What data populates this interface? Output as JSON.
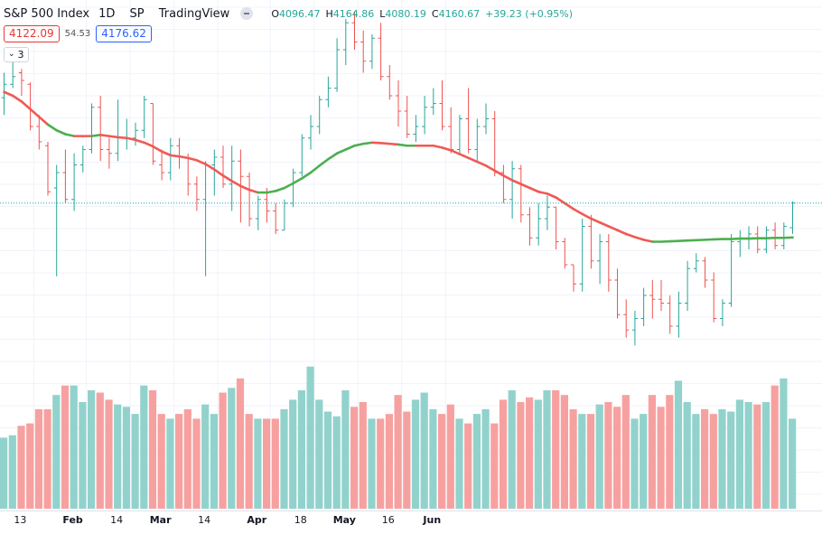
{
  "header": {
    "symbol": "S&P 500 Index",
    "interval": "1D",
    "exchange": "SP",
    "source": "TradingView",
    "open_label": "O",
    "open": "4096.47",
    "high_label": "H",
    "high": "4164.86",
    "low_label": "L",
    "low": "4080.19",
    "close_label": "C",
    "close": "4160.67",
    "change": "+39.23 (+0.95%)"
  },
  "indicator": {
    "value_a": "4122.09",
    "value_mid": "54.53",
    "value_b": "4176.62",
    "collapse_count": "3"
  },
  "colors": {
    "up": "#26a69a",
    "down": "#ef5350",
    "ma_down": "#f05a55",
    "ma_up": "#4caf50",
    "vol_up": "#92d2cc",
    "vol_down": "#f6a1a0"
  },
  "chart_data": {
    "type": "bar",
    "subtype": "ohlc",
    "date_labels": [
      "13",
      "Feb",
      "14",
      "Mar",
      "14",
      "Apr",
      "18",
      "May",
      "16",
      "Jun"
    ],
    "date_label_bars": [
      0,
      6,
      11,
      16,
      21,
      27,
      32,
      37,
      42,
      47
    ],
    "bold_labels": [
      "Feb",
      "Mar",
      "Apr",
      "May",
      "Jun"
    ],
    "last_close": 4160.67,
    "ohlc": [
      [
        4435,
        4500,
        4390,
        4470
      ],
      [
        4470,
        4530,
        4460,
        4490
      ],
      [
        4500,
        4510,
        4440,
        4480
      ],
      [
        4470,
        4475,
        4350,
        4360
      ],
      [
        4360,
        4390,
        4300,
        4320
      ],
      [
        4310,
        4320,
        4180,
        4190
      ],
      [
        4200,
        4260,
        3970,
        4240
      ],
      [
        4240,
        4300,
        4160,
        4170
      ],
      [
        4170,
        4290,
        4140,
        4260
      ],
      [
        4260,
        4310,
        4240,
        4300
      ],
      [
        4300,
        4420,
        4290,
        4410
      ],
      [
        4410,
        4440,
        4270,
        4300
      ],
      [
        4300,
        4330,
        4250,
        4290
      ],
      [
        4290,
        4430,
        4270,
        4330
      ],
      [
        4330,
        4380,
        4300,
        4330
      ],
      [
        4330,
        4370,
        4310,
        4350
      ],
      [
        4350,
        4440,
        4330,
        4430
      ],
      [
        4420,
        4420,
        4260,
        4270
      ],
      [
        4260,
        4300,
        4220,
        4240
      ],
      [
        4240,
        4330,
        4220,
        4310
      ],
      [
        4310,
        4330,
        4250,
        4280
      ],
      [
        4280,
        4290,
        4180,
        4210
      ],
      [
        4210,
        4230,
        4140,
        4170
      ],
      [
        4170,
        4270,
        3970,
        4260
      ],
      [
        4260,
        4300,
        4180,
        4280
      ],
      [
        4280,
        4310,
        4200,
        4210
      ],
      [
        4210,
        4310,
        4140,
        4270
      ],
      [
        4270,
        4300,
        4110,
        4230
      ],
      [
        4230,
        4240,
        4100,
        4120
      ],
      [
        4120,
        4180,
        4090,
        4170
      ],
      [
        4170,
        4200,
        4110,
        4140
      ],
      [
        4140,
        4160,
        4080,
        4090
      ],
      [
        4090,
        4170,
        4090,
        4160
      ],
      [
        4160,
        4250,
        4150,
        4240
      ],
      [
        4240,
        4340,
        4230,
        4330
      ],
      [
        4330,
        4390,
        4300,
        4360
      ],
      [
        4360,
        4440,
        4340,
        4430
      ],
      [
        4430,
        4490,
        4410,
        4460
      ],
      [
        4460,
        4590,
        4450,
        4560
      ],
      [
        4560,
        4640,
        4520,
        4630
      ],
      [
        4630,
        4660,
        4560,
        4580
      ],
      [
        4580,
        4610,
        4500,
        4530
      ],
      [
        4530,
        4600,
        4510,
        4590
      ],
      [
        4590,
        4630,
        4480,
        4490
      ],
      [
        4490,
        4520,
        4430,
        4440
      ],
      [
        4440,
        4480,
        4360,
        4400
      ],
      [
        4400,
        4440,
        4330,
        4340
      ],
      [
        4340,
        4390,
        4320,
        4360
      ],
      [
        4360,
        4440,
        4340,
        4410
      ],
      [
        4410,
        4460,
        4390,
        4420
      ],
      [
        4420,
        4480,
        4350,
        4360
      ],
      [
        4360,
        4410,
        4290,
        4300
      ],
      [
        4300,
        4390,
        4290,
        4380
      ],
      [
        4380,
        4460,
        4290,
        4300
      ],
      [
        4300,
        4380,
        4270,
        4360
      ],
      [
        4360,
        4420,
        4340,
        4380
      ],
      [
        4380,
        4400,
        4230,
        4240
      ],
      [
        4240,
        4260,
        4160,
        4170
      ],
      [
        4170,
        4270,
        4120,
        4250
      ],
      [
        4250,
        4260,
        4110,
        4130
      ],
      [
        4130,
        4150,
        4050,
        4070
      ],
      [
        4070,
        4160,
        4050,
        4120
      ],
      [
        4120,
        4180,
        4090,
        4150
      ],
      [
        4150,
        4150,
        4040,
        4060
      ],
      [
        4060,
        4070,
        3990,
        4000
      ],
      [
        4000,
        4000,
        3930,
        3950
      ],
      [
        3950,
        4120,
        3930,
        4100
      ],
      [
        4100,
        4130,
        3990,
        4010
      ],
      [
        4010,
        4080,
        3950,
        4060
      ],
      [
        4060,
        4080,
        3930,
        3960
      ],
      [
        3960,
        3990,
        3860,
        3870
      ],
      [
        3870,
        3910,
        3810,
        3830
      ],
      [
        3830,
        3880,
        3790,
        3860
      ],
      [
        3860,
        3940,
        3840,
        3920
      ],
      [
        3920,
        3960,
        3860,
        3910
      ],
      [
        3910,
        3960,
        3880,
        3900
      ],
      [
        3900,
        3920,
        3820,
        3840
      ],
      [
        3840,
        3930,
        3810,
        3900
      ],
      [
        3900,
        4010,
        3880,
        3990
      ],
      [
        3990,
        4030,
        3980,
        4010
      ],
      [
        4010,
        4020,
        3940,
        3960
      ],
      [
        3960,
        3980,
        3850,
        3860
      ],
      [
        3860,
        3910,
        3840,
        3900
      ],
      [
        3900,
        4080,
        3890,
        4060
      ],
      [
        4060,
        4090,
        4020,
        4070
      ],
      [
        4070,
        4100,
        4040,
        4080
      ],
      [
        4080,
        4100,
        4030,
        4040
      ],
      [
        4040,
        4100,
        4030,
        4090
      ],
      [
        4090,
        4110,
        4040,
        4050
      ],
      [
        4050,
        4110,
        4040,
        4100
      ],
      [
        4096.47,
        4164.86,
        4080.19,
        4160.67
      ]
    ],
    "ma": [
      4450,
      4440,
      4425,
      4405,
      4385,
      4365,
      4350,
      4340,
      4335,
      4335,
      4335,
      4338,
      4335,
      4332,
      4330,
      4325,
      4318,
      4308,
      4295,
      4285,
      4282,
      4278,
      4272,
      4262,
      4248,
      4232,
      4218,
      4205,
      4195,
      4188,
      4188,
      4192,
      4200,
      4212,
      4225,
      4240,
      4258,
      4275,
      4290,
      4300,
      4310,
      4315,
      4318,
      4317,
      4315,
      4313,
      4310,
      4310,
      4310,
      4310,
      4305,
      4298,
      4288,
      4278,
      4268,
      4258,
      4245,
      4232,
      4220,
      4210,
      4200,
      4190,
      4185,
      4175,
      4160,
      4145,
      4132,
      4120,
      4110,
      4100,
      4090,
      4080,
      4072,
      4065,
      4060,
      4060,
      4061,
      4062,
      4063,
      4064,
      4065,
      4066,
      4067,
      4067,
      4068,
      4068,
      4069,
      4069,
      4070,
      4070,
      4071
    ],
    "ma_trend_up": [
      false,
      false,
      false,
      false,
      false,
      false,
      true,
      true,
      true,
      false,
      false,
      true,
      false,
      false,
      false,
      false,
      false,
      false,
      false,
      false,
      false,
      false,
      false,
      false,
      false,
      false,
      false,
      false,
      false,
      false,
      true,
      true,
      true,
      true,
      true,
      true,
      true,
      true,
      true,
      true,
      true,
      true,
      true,
      false,
      false,
      false,
      true,
      true,
      false,
      false,
      false,
      false,
      false,
      false,
      false,
      false,
      false,
      false,
      false,
      false,
      false,
      false,
      false,
      false,
      false,
      false,
      false,
      false,
      false,
      false,
      false,
      false,
      false,
      false,
      false,
      true,
      true,
      true,
      true,
      true,
      true,
      true,
      true,
      true,
      true,
      true,
      true,
      true,
      true,
      true,
      true
    ],
    "volume": [
      30,
      31,
      35,
      36,
      42,
      42,
      48,
      52,
      52,
      45,
      50,
      49,
      46,
      44,
      43,
      40,
      52,
      50,
      40,
      38,
      40,
      42,
      38,
      44,
      40,
      49,
      51,
      55,
      40,
      38,
      38,
      38,
      42,
      46,
      50,
      60,
      46,
      41,
      39,
      50,
      43,
      45,
      38,
      38,
      40,
      48,
      41,
      46,
      49,
      42,
      40,
      44,
      38,
      36,
      40,
      42,
      36,
      46,
      50,
      45,
      47,
      46,
      50,
      50,
      48,
      42,
      40,
      40,
      44,
      45,
      43,
      48,
      38,
      40,
      48,
      43,
      48,
      54,
      45,
      40,
      42,
      40,
      42,
      41,
      46,
      45,
      44,
      45,
      52,
      55,
      38
    ],
    "y_range": [
      3760,
      4560
    ],
    "vol_range": [
      0,
      100
    ]
  }
}
